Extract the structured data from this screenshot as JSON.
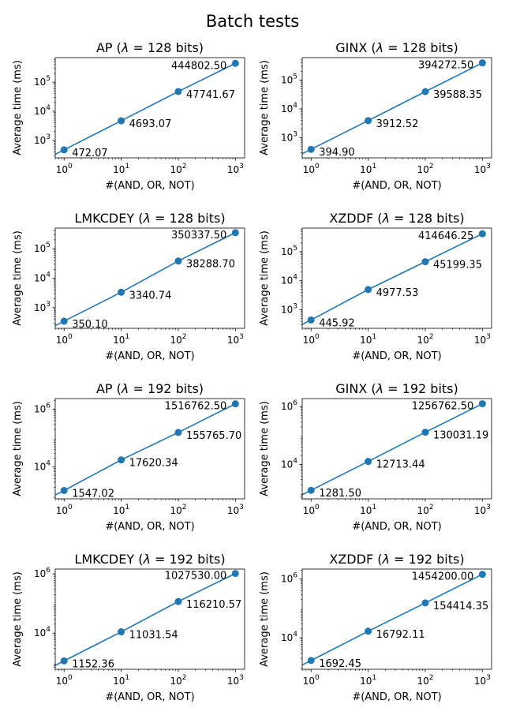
{
  "figure": {
    "title": "Batch tests"
  },
  "chart_data": [
    {
      "type": "line",
      "title": "AP (λ = 128 bits)",
      "title_name": "AP",
      "title_bits": "128",
      "xlabel": "#(AND, OR, NOT)",
      "ylabel": "Average time (ms)",
      "xscale": "log",
      "yscale": "log",
      "x": [
        1,
        10,
        100,
        1000
      ],
      "values": [
        472.07,
        4693.07,
        47741.67,
        444802.5
      ],
      "labels": [
        "472.07",
        "4693.07",
        "47741.67",
        "444802.50"
      ],
      "xlim": [
        0.7,
        1450
      ],
      "ylim": [
        250,
        700000
      ],
      "xticks": [
        1,
        10,
        100,
        1000
      ],
      "yticks": [
        1000,
        10000,
        100000
      ],
      "color": "#1f77b4"
    },
    {
      "type": "line",
      "title": "GINX (λ = 128 bits)",
      "title_name": "GINX",
      "title_bits": "128",
      "xlabel": "#(AND, OR, NOT)",
      "ylabel": "Average time (ms)",
      "xscale": "log",
      "yscale": "log",
      "x": [
        1,
        10,
        100,
        1000
      ],
      "values": [
        394.9,
        3912.52,
        39588.35,
        394272.5
      ],
      "labels": [
        "394.90",
        "3912.52",
        "39588.35",
        "394272.50"
      ],
      "xlim": [
        0.7,
        1450
      ],
      "ylim": [
        200,
        600000
      ],
      "xticks": [
        1,
        10,
        100,
        1000
      ],
      "yticks": [
        1000,
        10000,
        100000
      ],
      "color": "#1f77b4"
    },
    {
      "type": "line",
      "title": "LMKCDEY (λ = 128 bits)",
      "title_name": "LMKCDEY",
      "title_bits": "128",
      "xlabel": "#(AND, OR, NOT)",
      "ylabel": "Average time (ms)",
      "xscale": "log",
      "yscale": "log",
      "x": [
        1,
        10,
        100,
        1000
      ],
      "values": [
        350.1,
        3340.74,
        38288.7,
        350337.5
      ],
      "labels": [
        "350.10",
        "3340.74",
        "38288.70",
        "350337.50"
      ],
      "xlim": [
        0.7,
        1450
      ],
      "ylim": [
        200,
        500000
      ],
      "xticks": [
        1,
        10,
        100,
        1000
      ],
      "yticks": [
        1000,
        10000,
        100000
      ],
      "color": "#1f77b4"
    },
    {
      "type": "line",
      "title": "XZDDF (λ = 128 bits)",
      "title_name": "XZDDF",
      "title_bits": "128",
      "xlabel": "#(AND, OR, NOT)",
      "ylabel": "Average time (ms)",
      "xscale": "log",
      "yscale": "log",
      "x": [
        1,
        10,
        100,
        1000
      ],
      "values": [
        445.92,
        4977.53,
        45199.35,
        414646.25
      ],
      "labels": [
        "445.92",
        "4977.53",
        "45199.35",
        "414646.25"
      ],
      "xlim": [
        0.7,
        1450
      ],
      "ylim": [
        230,
        650000
      ],
      "xticks": [
        1,
        10,
        100,
        1000
      ],
      "yticks": [
        1000,
        10000,
        100000
      ],
      "color": "#1f77b4"
    },
    {
      "type": "line",
      "title": "AP (λ = 192 bits)",
      "title_name": "AP",
      "title_bits": "192",
      "xlabel": "#(AND, OR, NOT)",
      "ylabel": "Average time (ms)",
      "xscale": "log",
      "yscale": "log",
      "x": [
        1,
        10,
        100,
        1000
      ],
      "values": [
        1547.02,
        17620.34,
        155765.7,
        1516762.5
      ],
      "labels": [
        "1547.02",
        "17620.34",
        "155765.70",
        "1516762.50"
      ],
      "xlim": [
        0.7,
        1450
      ],
      "ylim": [
        800,
        2300000
      ],
      "xticks": [
        1,
        10,
        100,
        1000
      ],
      "yticks": [
        10000,
        1000000
      ],
      "color": "#1f77b4"
    },
    {
      "type": "line",
      "title": "GINX (λ = 192 bits)",
      "title_name": "GINX",
      "title_bits": "192",
      "xlabel": "#(AND, OR, NOT)",
      "ylabel": "Average time (ms)",
      "xscale": "log",
      "yscale": "log",
      "x": [
        1,
        10,
        100,
        1000
      ],
      "values": [
        1281.5,
        12713.44,
        130031.19,
        1256762.5
      ],
      "labels": [
        "1281.50",
        "12713.44",
        "130031.19",
        "1256762.50"
      ],
      "xlim": [
        0.7,
        1450
      ],
      "ylim": [
        650,
        1900000
      ],
      "xticks": [
        1,
        10,
        100,
        1000
      ],
      "yticks": [
        10000,
        1000000
      ],
      "color": "#1f77b4"
    },
    {
      "type": "line",
      "title": "LMKCDEY (λ = 192 bits)",
      "title_name": "LMKCDEY",
      "title_bits": "192",
      "xlabel": "#(AND, OR, NOT)",
      "ylabel": "Average time (ms)",
      "xscale": "log",
      "yscale": "log",
      "x": [
        1,
        10,
        100,
        1000
      ],
      "values": [
        1152.36,
        11031.54,
        116210.57,
        1027530.0
      ],
      "labels": [
        "1152.36",
        "11031.54",
        "116210.57",
        "1027530.00"
      ],
      "xlim": [
        0.7,
        1450
      ],
      "ylim": [
        600,
        1450000
      ],
      "xticks": [
        1,
        10,
        100,
        1000
      ],
      "yticks": [
        10000,
        1000000
      ],
      "color": "#1f77b4"
    },
    {
      "type": "line",
      "title": "XZDDF (λ = 192 bits)",
      "title_name": "XZDDF",
      "title_bits": "192",
      "xlabel": "#(AND, OR, NOT)",
      "ylabel": "Average time (ms)",
      "xscale": "log",
      "yscale": "log",
      "x": [
        1,
        10,
        100,
        1000
      ],
      "values": [
        1692.45,
        16792.11,
        154414.35,
        1454200.0
      ],
      "labels": [
        "1692.45",
        "16792.11",
        "154414.35",
        "1454200.00"
      ],
      "xlim": [
        0.7,
        1450
      ],
      "ylim": [
        850,
        2200000
      ],
      "xticks": [
        1,
        10,
        100,
        1000
      ],
      "yticks": [
        10000,
        1000000
      ],
      "color": "#1f77b4"
    }
  ]
}
